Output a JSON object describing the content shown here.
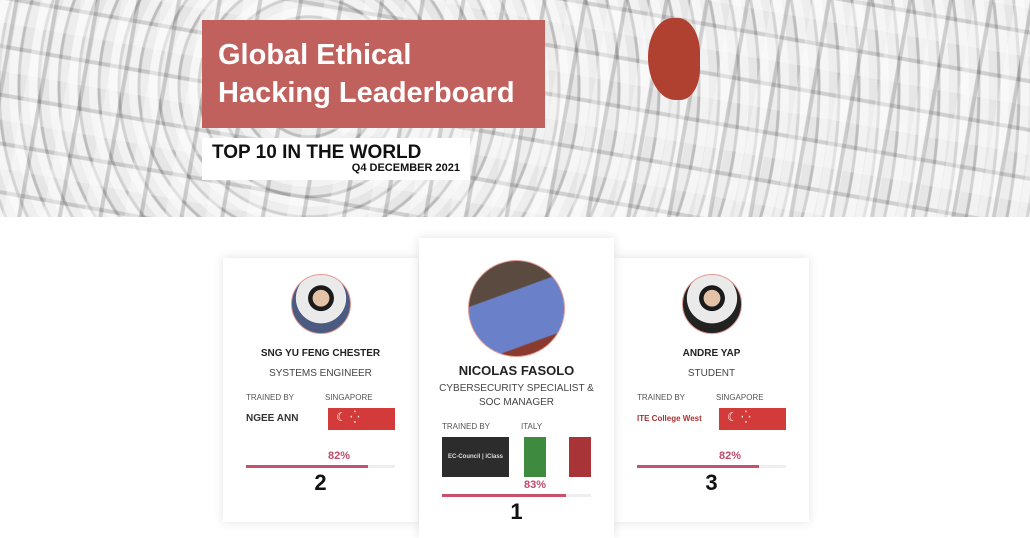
{
  "banner": {
    "title": "Global Ethical Hacking Leaderboard",
    "subtitle": "TOP 10 IN THE WORLD",
    "period": "Q4 DECEMBER 2021",
    "accent": "#c0615e"
  },
  "labels": {
    "trained_by": "TRAINED BY"
  },
  "leaders": [
    {
      "rank": "2",
      "name": "SNG YU FENG CHESTER",
      "role": "SYSTEMS ENGINEER",
      "country": "SINGAPORE",
      "school": "NGEE ANN",
      "score": "82%",
      "score_value": 82
    },
    {
      "rank": "1",
      "name": "NICOLAS FASOLO",
      "role": "CYBERSECURITY SPECIALIST & SOC MANAGER",
      "country": "ITALY",
      "school": "EC-Council | iClass",
      "score": "83%",
      "score_value": 83
    },
    {
      "rank": "3",
      "name": "ANDRE YAP",
      "role": "STUDENT",
      "country": "SINGAPORE",
      "school": "ITE College West",
      "score": "82%",
      "score_value": 82
    }
  ]
}
